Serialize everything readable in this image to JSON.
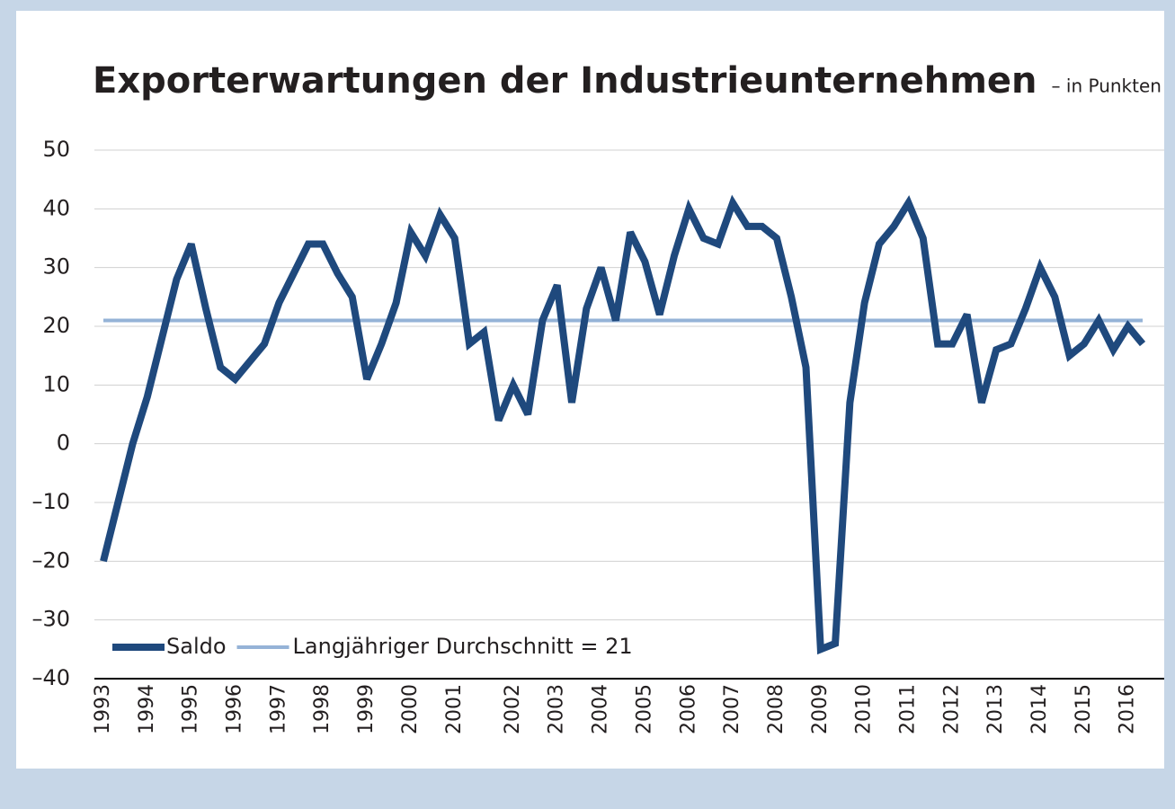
{
  "chart_data": {
    "type": "line",
    "title": "Exporterwartungen der Industrieunternehmen",
    "subtitle": "– in Punkten",
    "categories": [
      "1993",
      null,
      null,
      "1994",
      null,
      null,
      "1995",
      null,
      null,
      "1996",
      null,
      null,
      "1997",
      null,
      null,
      "1998",
      null,
      null,
      "1999",
      null,
      null,
      "2000",
      null,
      null,
      "2001",
      null,
      null,
      null,
      "2002",
      null,
      null,
      "2003",
      null,
      null,
      "2004",
      null,
      null,
      "2005",
      null,
      null,
      "2006",
      null,
      null,
      "2007",
      null,
      null,
      "2008",
      null,
      null,
      "2009",
      null,
      null,
      "2010",
      null,
      null,
      "2011",
      null,
      null,
      "2012",
      null,
      null,
      "2013",
      null,
      null,
      "2014",
      null,
      null,
      "2015",
      null,
      null,
      "2016",
      null
    ],
    "series": [
      {
        "name": "Saldo",
        "color": "#1f497d",
        "values": [
          -20,
          -10,
          0,
          8,
          18,
          28,
          34,
          23,
          13,
          11,
          14,
          17,
          24,
          29,
          34,
          34,
          29,
          25,
          11,
          17,
          24,
          36,
          32,
          39,
          35,
          17,
          19,
          4,
          10,
          5,
          21,
          27,
          7,
          23,
          30,
          21,
          36,
          31,
          22,
          32,
          40,
          35,
          34,
          41,
          37,
          37,
          35,
          25,
          13,
          -35,
          -34,
          7,
          24,
          34,
          37,
          41,
          35,
          17,
          17,
          22,
          7,
          16,
          17,
          23,
          30,
          25,
          15,
          17,
          21,
          16,
          20,
          17
        ]
      }
    ],
    "reference_line": {
      "name": "Langjähriger Durchschnitt = 21",
      "value": 21,
      "color": "#95b3d7"
    },
    "ylim": [
      -40,
      50
    ],
    "yticks": [
      {
        "value": -40,
        "label": "–40"
      },
      {
        "value": -30,
        "label": "–30"
      },
      {
        "value": -20,
        "label": "–20"
      },
      {
        "value": -10,
        "label": "–10"
      },
      0,
      10,
      20,
      30,
      40,
      50
    ],
    "grid": true,
    "legend": "bottom-left"
  }
}
